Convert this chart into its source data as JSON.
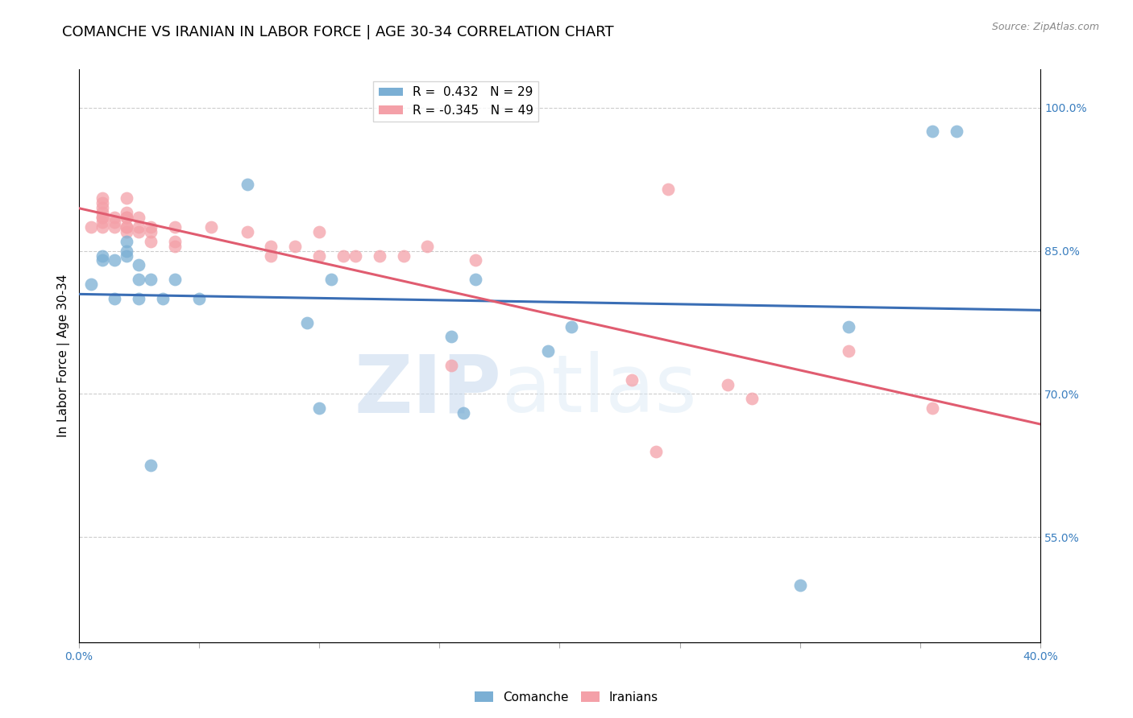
{
  "title": "COMANCHE VS IRANIAN IN LABOR FORCE | AGE 30-34 CORRELATION CHART",
  "source": "Source: ZipAtlas.com",
  "xlabel": "",
  "ylabel": "In Labor Force | Age 30-34",
  "xlim": [
    0.0,
    0.4
  ],
  "ylim": [
    0.44,
    1.04
  ],
  "yticks": [
    0.55,
    0.7,
    0.85,
    1.0
  ],
  "ytick_labels": [
    "55.0%",
    "70.0%",
    "85.0%",
    "100.0%"
  ],
  "xticks": [
    0.0,
    0.05,
    0.1,
    0.15,
    0.2,
    0.25,
    0.3,
    0.35,
    0.4
  ],
  "xtick_labels": [
    "0.0%",
    "",
    "",
    "",
    "",
    "",
    "",
    "",
    "40.0%"
  ],
  "comanche_x": [
    0.005,
    0.01,
    0.01,
    0.015,
    0.015,
    0.02,
    0.02,
    0.02,
    0.025,
    0.025,
    0.025,
    0.03,
    0.03,
    0.035,
    0.04,
    0.05,
    0.07,
    0.095,
    0.1,
    0.105,
    0.155,
    0.16,
    0.165,
    0.195,
    0.205,
    0.3,
    0.32,
    0.355,
    0.365
  ],
  "comanche_y": [
    0.815,
    0.84,
    0.845,
    0.8,
    0.84,
    0.845,
    0.85,
    0.86,
    0.8,
    0.82,
    0.835,
    0.625,
    0.82,
    0.8,
    0.82,
    0.8,
    0.92,
    0.775,
    0.685,
    0.82,
    0.76,
    0.68,
    0.82,
    0.745,
    0.77,
    0.5,
    0.77,
    0.975,
    0.975
  ],
  "iranian_x": [
    0.005,
    0.01,
    0.01,
    0.01,
    0.01,
    0.01,
    0.01,
    0.01,
    0.01,
    0.015,
    0.015,
    0.015,
    0.02,
    0.02,
    0.02,
    0.02,
    0.02,
    0.02,
    0.02,
    0.025,
    0.025,
    0.025,
    0.03,
    0.03,
    0.03,
    0.04,
    0.04,
    0.04,
    0.055,
    0.07,
    0.08,
    0.08,
    0.09,
    0.1,
    0.1,
    0.11,
    0.115,
    0.125,
    0.135,
    0.145,
    0.155,
    0.165,
    0.23,
    0.24,
    0.245,
    0.27,
    0.28,
    0.32,
    0.355
  ],
  "iranian_y": [
    0.875,
    0.875,
    0.88,
    0.885,
    0.885,
    0.89,
    0.895,
    0.9,
    0.905,
    0.875,
    0.88,
    0.885,
    0.87,
    0.875,
    0.875,
    0.885,
    0.885,
    0.89,
    0.905,
    0.87,
    0.875,
    0.885,
    0.86,
    0.87,
    0.875,
    0.855,
    0.86,
    0.875,
    0.875,
    0.87,
    0.845,
    0.855,
    0.855,
    0.845,
    0.87,
    0.845,
    0.845,
    0.845,
    0.845,
    0.855,
    0.73,
    0.84,
    0.715,
    0.64,
    0.915,
    0.71,
    0.695,
    0.745,
    0.685
  ],
  "comanche_R": 0.432,
  "comanche_N": 29,
  "iranian_R": -0.345,
  "iranian_N": 49,
  "comanche_color": "#7bafd4",
  "iranian_color": "#f4a0a8",
  "comanche_line_color": "#3a6eb5",
  "iranian_line_color": "#e05c70",
  "background_color": "#ffffff",
  "watermark_zip": "ZIP",
  "watermark_atlas": "atlas",
  "title_fontsize": 13,
  "axis_label_fontsize": 11,
  "tick_fontsize": 10,
  "legend_fontsize": 11
}
